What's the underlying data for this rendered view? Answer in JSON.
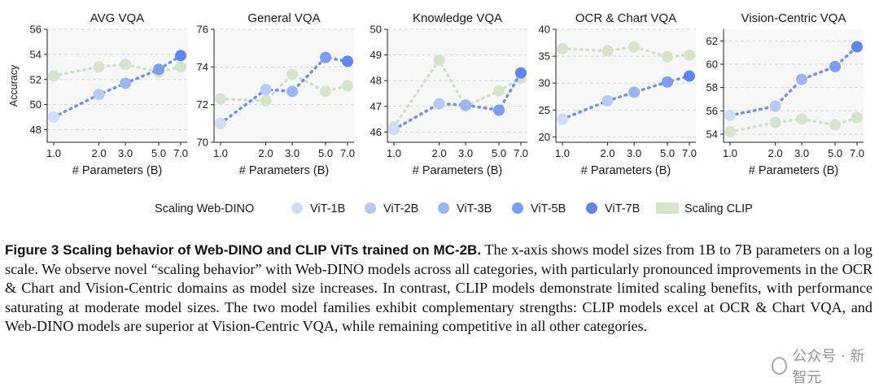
{
  "chart_data": [
    {
      "type": "line",
      "title": "AVG VQA",
      "ylabel": "Accuracy",
      "xlabel": "# Parameters (B)",
      "x": [
        1.0,
        2.0,
        3.0,
        5.0,
        7.0
      ],
      "x_tick_labels": [
        "1.0",
        "2.0",
        "3.0",
        "5.0",
        "7.0"
      ],
      "x_scale": "log",
      "ylim": [
        47,
        56
      ],
      "y_ticks": [
        48,
        50,
        52,
        54,
        56
      ],
      "series": [
        {
          "name": "Scaling Web-DINO",
          "values": [
            49.0,
            50.8,
            51.7,
            52.8,
            53.9
          ]
        },
        {
          "name": "Scaling CLIP",
          "values": [
            52.3,
            53.0,
            53.2,
            52.6,
            53.0
          ]
        }
      ]
    },
    {
      "type": "line",
      "title": "General VQA",
      "xlabel": "# Parameters (B)",
      "x": [
        1.0,
        2.0,
        3.0,
        5.0,
        7.0
      ],
      "x_tick_labels": [
        "1.0",
        "2.0",
        "3.0",
        "5.0",
        "7.0"
      ],
      "x_scale": "log",
      "ylim": [
        70,
        76
      ],
      "y_ticks": [
        70,
        72,
        74,
        76
      ],
      "series": [
        {
          "name": "Scaling Web-DINO",
          "values": [
            71.0,
            72.8,
            72.7,
            74.5,
            74.3
          ]
        },
        {
          "name": "Scaling CLIP",
          "values": [
            72.3,
            72.2,
            73.6,
            72.7,
            73.0
          ]
        }
      ]
    },
    {
      "type": "line",
      "title": "Knowledge VQA",
      "xlabel": "# Parameters (B)",
      "x": [
        1.0,
        2.0,
        3.0,
        5.0,
        7.0
      ],
      "x_tick_labels": [
        "1.0",
        "2.0",
        "3.0",
        "5.0",
        "7.0"
      ],
      "x_scale": "log",
      "ylim": [
        45.6,
        50
      ],
      "y_ticks": [
        46,
        47,
        48,
        49,
        50
      ],
      "series": [
        {
          "name": "Scaling Web-DINO",
          "values": [
            46.1,
            47.1,
            47.05,
            46.85,
            48.3
          ]
        },
        {
          "name": "Scaling CLIP",
          "values": [
            46.2,
            48.8,
            47.0,
            47.6,
            48.1
          ]
        }
      ]
    },
    {
      "type": "line",
      "title": "OCR & Chart VQA",
      "xlabel": "# Parameters (B)",
      "x": [
        1.0,
        2.0,
        3.0,
        5.0,
        7.0
      ],
      "x_tick_labels": [
        "1.0",
        "2.0",
        "3.0",
        "5.0",
        "7.0"
      ],
      "x_scale": "log",
      "ylim": [
        19,
        40
      ],
      "y_ticks": [
        20,
        25,
        30,
        35,
        40
      ],
      "series": [
        {
          "name": "Scaling Web-DINO",
          "values": [
            23.3,
            26.7,
            28.3,
            30.2,
            31.3
          ]
        },
        {
          "name": "Scaling CLIP",
          "values": [
            36.4,
            36.0,
            36.7,
            34.9,
            35.2
          ]
        }
      ]
    },
    {
      "type": "line",
      "title": "Vision-Centric VQA",
      "xlabel": "# Parameters (B)",
      "x": [
        1.0,
        2.0,
        3.0,
        5.0,
        7.0
      ],
      "x_tick_labels": [
        "1.0",
        "2.0",
        "3.0",
        "5.0",
        "7.0"
      ],
      "x_scale": "log",
      "ylim": [
        53.3,
        63
      ],
      "y_ticks": [
        54,
        56,
        58,
        60,
        62
      ],
      "series": [
        {
          "name": "Scaling Web-DINO",
          "values": [
            55.6,
            56.4,
            58.7,
            59.8,
            61.5
          ]
        },
        {
          "name": "Scaling CLIP",
          "values": [
            54.2,
            55.0,
            55.3,
            54.8,
            55.4
          ]
        }
      ]
    }
  ],
  "legend": {
    "title": "Scaling Web-DINO",
    "items": [
      {
        "label": "ViT-1B",
        "color": "#cfdcf6"
      },
      {
        "label": "ViT-2B",
        "color": "#b6caf3"
      },
      {
        "label": "ViT-3B",
        "color": "#9bb5ee"
      },
      {
        "label": "ViT-5B",
        "color": "#7d9df0"
      },
      {
        "label": "ViT-7B",
        "color": "#5f86ea"
      }
    ],
    "clip_label": "Scaling CLIP"
  },
  "colors": {
    "dino_points": [
      "#cfdcf6",
      "#b6caf3",
      "#9bb5ee",
      "#7d9df0",
      "#5f86ea"
    ],
    "dino_line": "#6e93ec",
    "clip_line": "#cfe0c4",
    "clip_point": "#d5e5cb",
    "panel_bg": "#f7f7f7",
    "grid": "#d9d9d9"
  },
  "caption": {
    "title": "Figure 3  Scaling behavior of Web-DINO and CLIP ViTs trained on MC-2B.",
    "body": " The x-axis shows model sizes from 1B to 7B parameters on a log scale. We observe novel “scaling behavior” with Web-DINO models across all categories, with particularly pronounced improvements in the OCR & Chart and Vision-Centric domains as model size increases. In contrast, CLIP models demonstrate limited scaling benefits, with performance saturating at moderate model sizes. The two model families exhibit complementary strengths: CLIP models excel at OCR & Chart VQA, and Web-DINO models are superior at Vision-Centric VQA, while remaining competitive in all other categories."
  },
  "watermark": "公众号 · 新智元"
}
